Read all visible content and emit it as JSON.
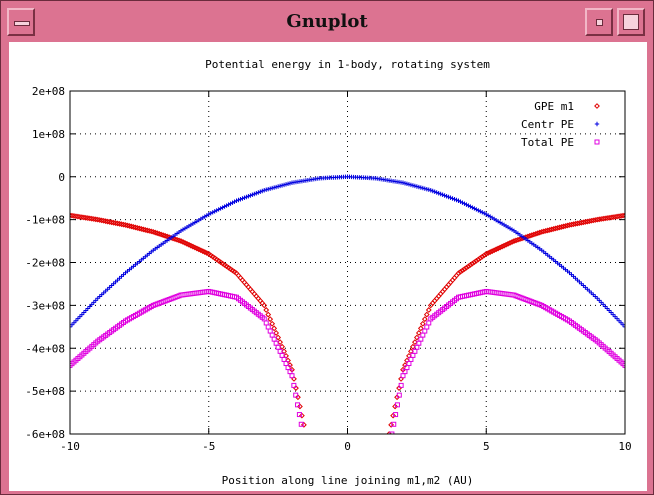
{
  "window": {
    "title": "Gnuplot",
    "buttons": [
      "window-menu",
      "minimize",
      "maximize"
    ]
  },
  "chart_data": {
    "type": "scatter",
    "title": "Potential energy in 1-body, rotating system",
    "xlabel": "Position along line joining m1,m2 (AU)",
    "ylabel": "",
    "xlim": [
      -10,
      10
    ],
    "ylim": [
      -600000000,
      200000000
    ],
    "x_ticks": [
      -10,
      -5,
      0,
      5,
      10
    ],
    "x_tick_labels": [
      "-10",
      "-5",
      "0",
      "5",
      "10"
    ],
    "y_ticks": [
      200000000,
      100000000,
      0,
      -100000000,
      -200000000,
      -300000000,
      -400000000,
      -500000000,
      -600000000
    ],
    "y_tick_labels": [
      "2e+08",
      "1e+08",
      "0",
      "-1e+08",
      "-2e+08",
      "-3e+08",
      "-4e+08",
      "-5e+08",
      "-6e+08"
    ],
    "grid": true,
    "legend_position": "top-right",
    "series": [
      {
        "name": "GPE m1",
        "marker": "diamond",
        "color": "#e00000",
        "x": [
          -10,
          -9,
          -8,
          -7,
          -6,
          -5,
          -4,
          -3,
          -2,
          -1.5,
          1.5,
          2,
          3,
          4,
          5,
          6,
          7,
          8,
          9,
          10
        ],
        "y": [
          -90000000,
          -100000000,
          -112500000,
          -128600000,
          -150000000,
          -180000000,
          -225000000,
          -300000000,
          -450000000,
          -600000000,
          -600000000,
          -450000000,
          -300000000,
          -225000000,
          -180000000,
          -150000000,
          -128600000,
          -112500000,
          -100000000,
          -90000000
        ]
      },
      {
        "name": "Centr PE",
        "marker": "plus",
        "color": "#0000e0",
        "x": [
          -10,
          -9,
          -8,
          -7,
          -6,
          -5,
          -4,
          -3,
          -2,
          -1,
          0,
          1,
          2,
          3,
          4,
          5,
          6,
          7,
          8,
          9,
          10
        ],
        "y": [
          -350000000,
          -283500000,
          -224000000,
          -171500000,
          -126000000,
          -87500000,
          -56000000,
          -31500000,
          -14000000,
          -3500000,
          0,
          -3500000,
          -14000000,
          -31500000,
          -56000000,
          -87500000,
          -126000000,
          -171500000,
          -224000000,
          -283500000,
          -350000000
        ]
      },
      {
        "name": "Total PE",
        "marker": "square",
        "color": "#e000e0",
        "x": [
          -10,
          -9,
          -8,
          -7,
          -6,
          -5,
          -4,
          -3,
          -2,
          -1.6,
          1.6,
          2,
          3,
          4,
          5,
          6,
          7,
          8,
          9,
          10
        ],
        "y": [
          -440000000,
          -383500000,
          -336500000,
          -300100000,
          -276000000,
          -267500000,
          -281000000,
          -331500000,
          -464000000,
          -600000000,
          -600000000,
          -464000000,
          -331500000,
          -281000000,
          -267500000,
          -276000000,
          -300100000,
          -336500000,
          -383500000,
          -440000000
        ]
      }
    ]
  }
}
